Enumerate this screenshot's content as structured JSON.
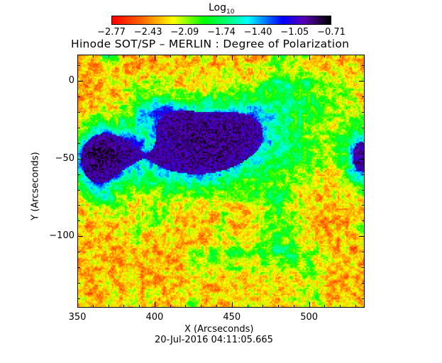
{
  "chart_data": {
    "type": "heatmap",
    "title": "Hinode SOT/SP – MERLIN : Degree of Polarization",
    "xlabel": "X (Arcseconds)",
    "ylabel": "Y (Arcseconds)",
    "xlim": [
      350,
      536
    ],
    "ylim": [
      -146,
      17
    ],
    "x_ticks": [
      "350",
      "400",
      "450",
      "500"
    ],
    "y_ticks": [
      "0",
      "−50",
      "−100"
    ],
    "colorbar": {
      "label_base": "Log",
      "label_sub": "10",
      "ticks": [
        "−2.77",
        "−2.43",
        "−2.09",
        "−1.74",
        "−1.40",
        "−1.05",
        "−0.71"
      ],
      "range": [
        -2.77,
        -0.71
      ],
      "colormap": [
        "#ff0000",
        "#ff6a00",
        "#ffff00",
        "#00ff00",
        "#00ff90",
        "#00ffff",
        "#0000ff",
        "#5a00b4",
        "#000000"
      ]
    },
    "timestamp": "20-Jul-2016 04:11:05.665"
  }
}
